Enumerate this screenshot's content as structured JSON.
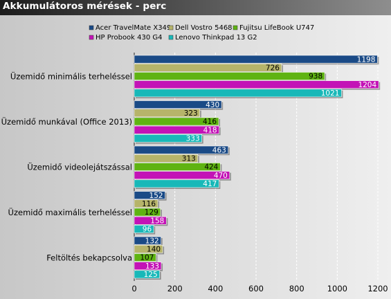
{
  "chart_data": {
    "type": "bar",
    "orientation": "horizontal",
    "title": "Akkumulátoros mérések - perc",
    "categories": [
      "Üzemidő minimális terheléssel",
      "Üzemidő munkával (Office 2013)",
      "Üzemidő videolejátszással",
      "Üzemidő maximális terheléssel",
      "Feltöltés bekapcsolva"
    ],
    "series": [
      {
        "name": "Acer TravelMate X349",
        "color": "#1a4a86",
        "values": [
          1198,
          430,
          463,
          152,
          132
        ]
      },
      {
        "name": "Dell Vostro 5468",
        "color": "#b6b46a",
        "values": [
          726,
          323,
          313,
          116,
          140
        ]
      },
      {
        "name": "Fujitsu LifeBook U747",
        "color": "#5fb312",
        "values": [
          938,
          416,
          424,
          129,
          107
        ]
      },
      {
        "name": "HP Probook 430 G4",
        "color": "#c313b6",
        "values": [
          1204,
          418,
          470,
          158,
          133
        ]
      },
      {
        "name": "Lenovo Thinkpad 13 G2",
        "color": "#18b8b8",
        "values": [
          1021,
          333,
          417,
          96,
          125
        ]
      }
    ],
    "xlim": [
      0,
      1200
    ],
    "xticks": [
      0,
      200,
      400,
      600,
      800,
      1000,
      1200
    ],
    "grid": "vertical dashed",
    "legend_position": "top"
  }
}
